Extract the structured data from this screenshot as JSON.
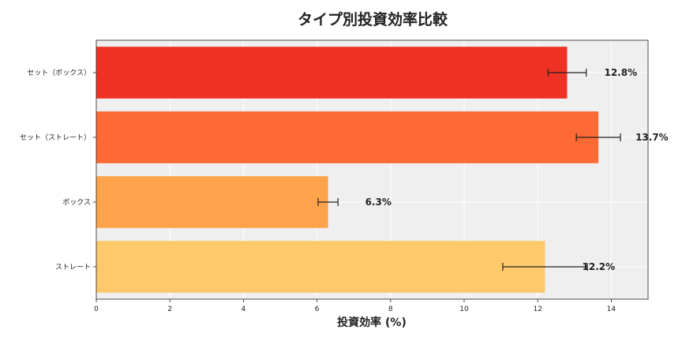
{
  "chart_data": {
    "type": "bar",
    "orientation": "horizontal",
    "title": "タイプ別投資効率比較",
    "xlabel": "投資効率 (%)",
    "ylabel": "",
    "xlim": [
      0,
      15
    ],
    "xticks": [
      0,
      2,
      4,
      6,
      8,
      10,
      12,
      14
    ],
    "grid": true,
    "categories": [
      "セット（ボックス）",
      "セット（ストレート）",
      "ボックス",
      "ストレート"
    ],
    "values": [
      12.8,
      13.65,
      6.3,
      12.2
    ],
    "error": [
      0.52,
      0.6,
      0.27,
      1.15
    ],
    "data_labels": [
      "12.8%",
      "13.7%",
      "6.3%",
      "12.2%"
    ],
    "colors": [
      "#ef3124",
      "#fd6a35",
      "#fda34b",
      "#fdc96a"
    ],
    "background": "#efefef"
  }
}
